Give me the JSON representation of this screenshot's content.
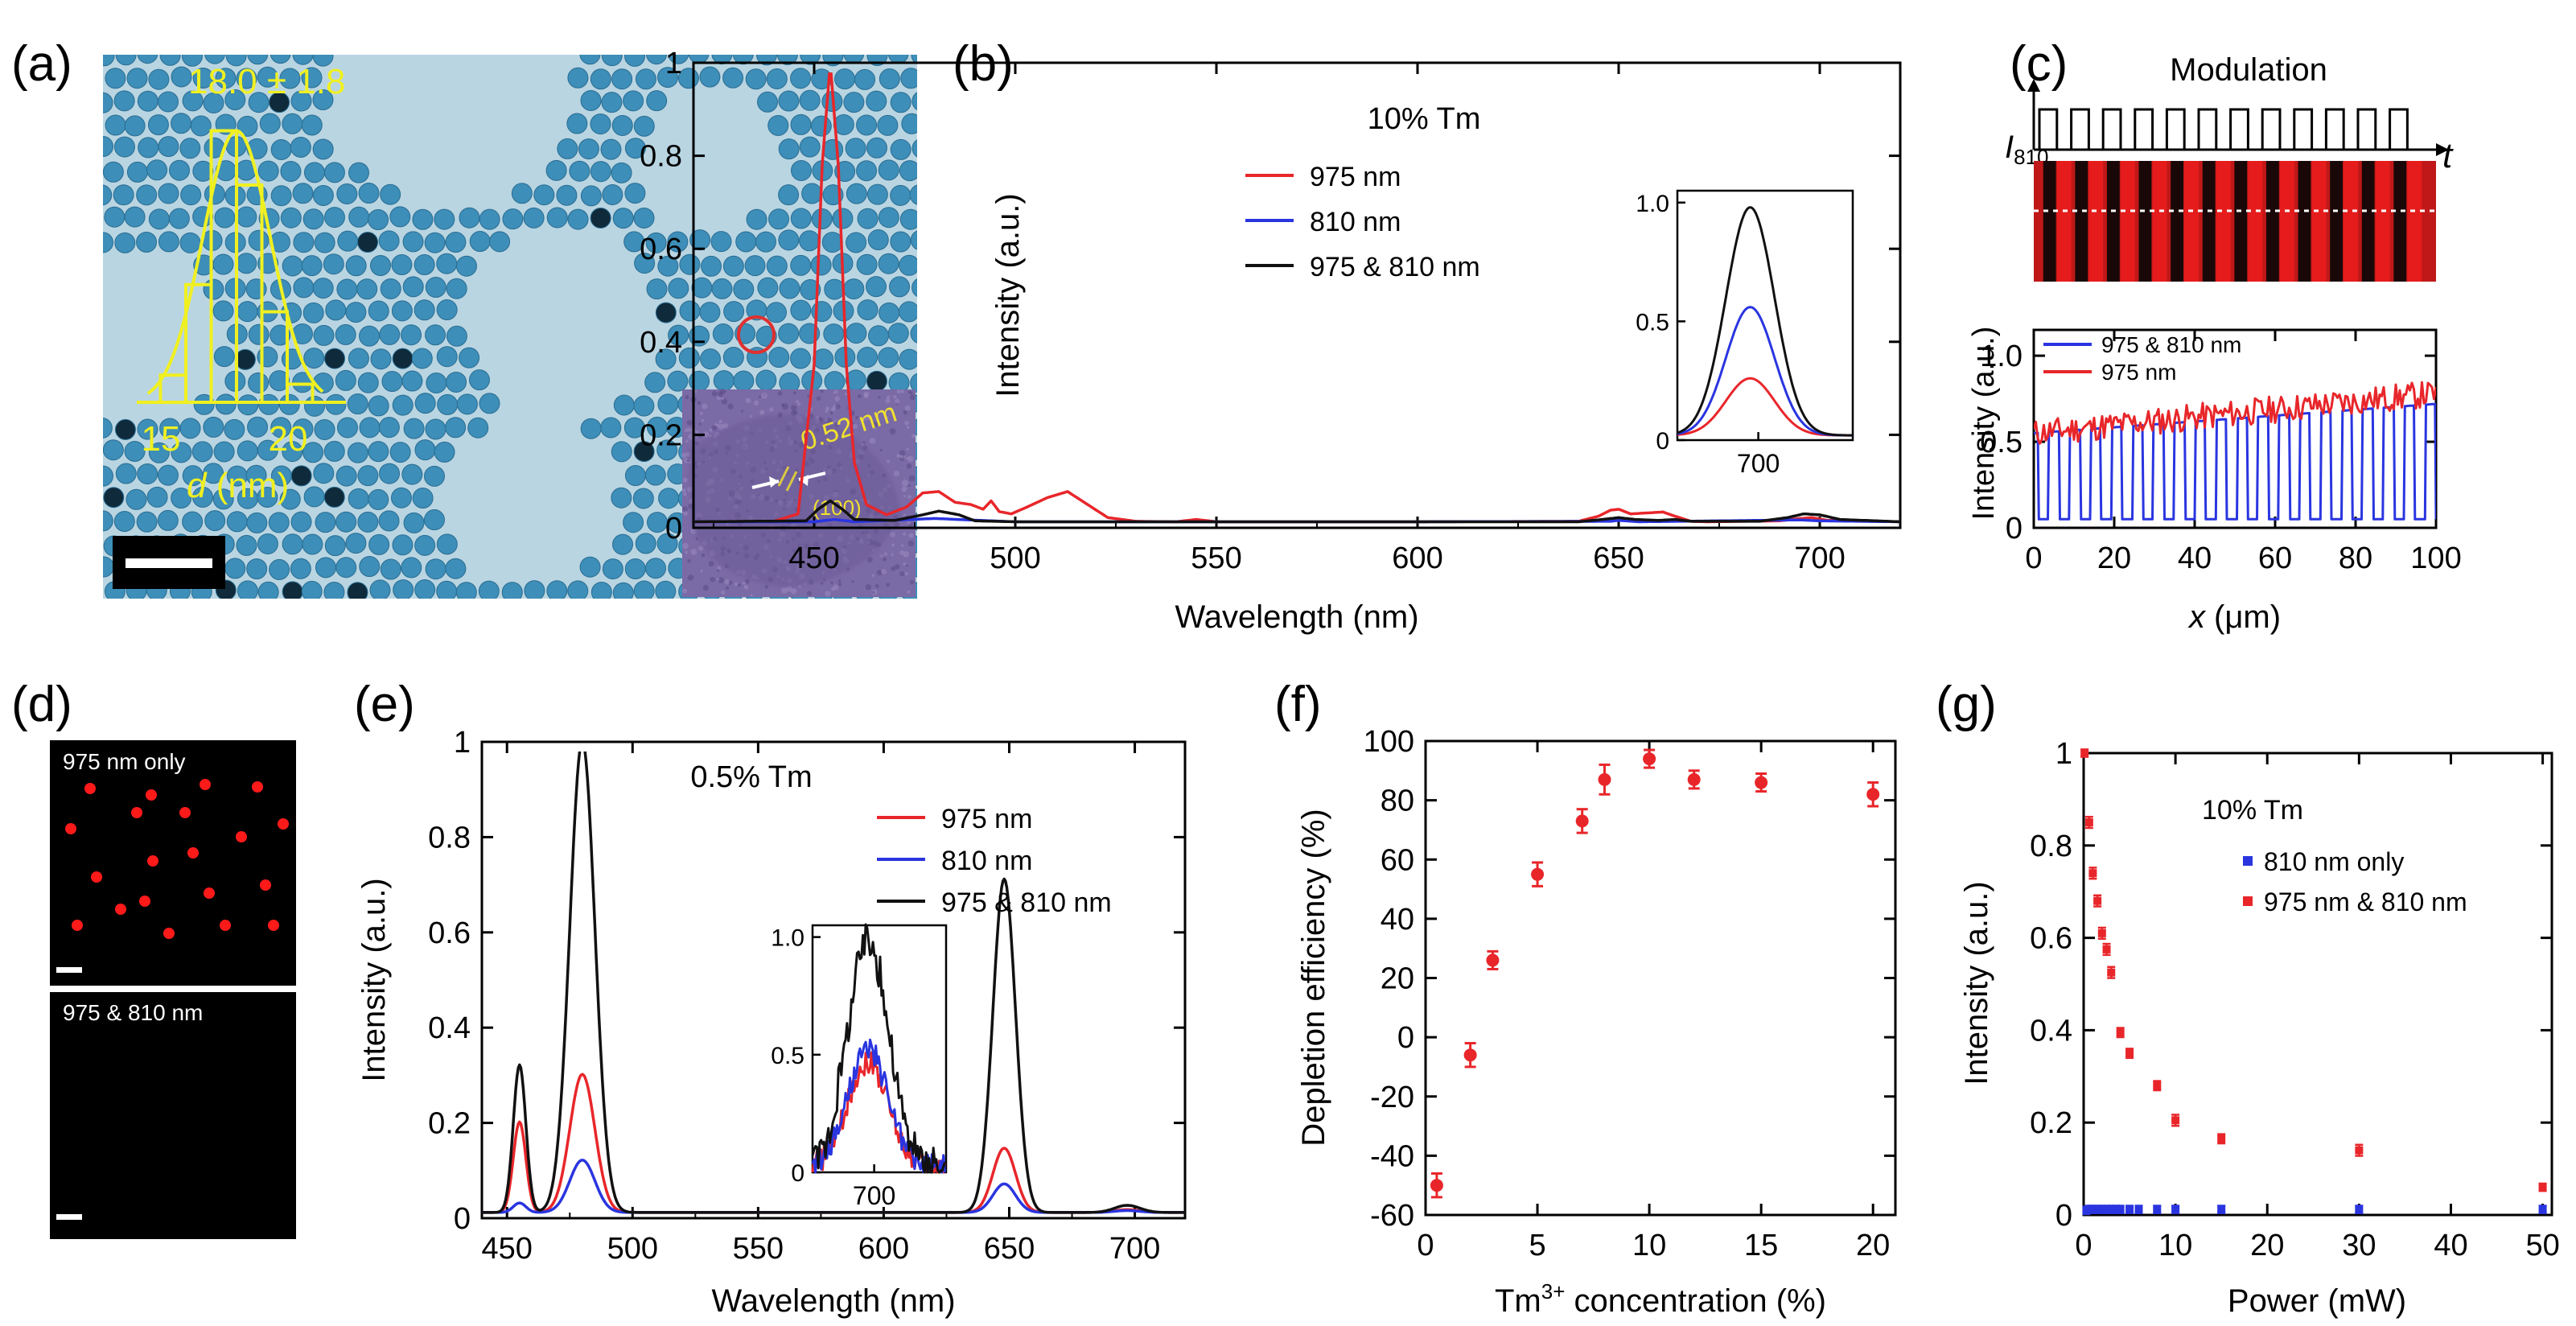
{
  "figure": {
    "panel_labels": [
      "(a)",
      "(b)",
      "(c)",
      "(d)",
      "(e)",
      "(f)",
      "(g)"
    ]
  },
  "panel_a": {
    "hist_label": "18.0 ± 1.8",
    "hist_xticks": [
      "15",
      "20"
    ],
    "hist_xlabel_var": "d",
    "hist_xlabel_unit": " (nm)",
    "hist_bins": [
      15.5,
      16.5,
      17.5,
      18.5,
      19.5,
      20.5
    ],
    "hist_counts": [
      3,
      13,
      30,
      24,
      10,
      2
    ],
    "inset_spacing": "0.52 nm",
    "inset_plane": "(100)",
    "colors": {
      "annotation": "#f0f020",
      "background": "#b9d5e2",
      "particle": "#3d8eb8",
      "circle": "#e03030"
    }
  },
  "chart_data": [
    {
      "panel": "b",
      "type": "line",
      "title": "10% Tm",
      "xlabel": "Wavelength (nm)",
      "ylabel": "Intensity (a.u.)",
      "xlim": [
        420,
        720
      ],
      "ylim": [
        0,
        1.0
      ],
      "xticks": [
        450,
        500,
        550,
        600,
        650,
        700
      ],
      "yticks": [
        0,
        0.2,
        0.4,
        0.6,
        0.8,
        1
      ],
      "ytick_labels": [
        "0",
        "0.2",
        "0.4",
        "0.6",
        "0.8",
        "1"
      ],
      "series": [
        {
          "name": "975 nm",
          "color": "#e8262a",
          "x": [
            420,
            440,
            446,
            450,
            452,
            454,
            456,
            458,
            460,
            463,
            468,
            473,
            477,
            481,
            485,
            489,
            492,
            494,
            496,
            499,
            503,
            508,
            513,
            518,
            523,
            530,
            540,
            545,
            550,
            600,
            640,
            645,
            648,
            650,
            653,
            657,
            661,
            664,
            668,
            672,
            690,
            695,
            698,
            702,
            720
          ],
          "values": [
            0.013,
            0.014,
            0.03,
            0.35,
            0.78,
            1.0,
            0.78,
            0.35,
            0.14,
            0.05,
            0.028,
            0.045,
            0.075,
            0.078,
            0.055,
            0.05,
            0.04,
            0.058,
            0.035,
            0.03,
            0.045,
            0.065,
            0.078,
            0.05,
            0.022,
            0.014,
            0.013,
            0.018,
            0.013,
            0.013,
            0.014,
            0.025,
            0.038,
            0.04,
            0.03,
            0.032,
            0.034,
            0.025,
            0.014,
            0.013,
            0.015,
            0.02,
            0.022,
            0.016,
            0.013
          ]
        },
        {
          "name": "810 nm",
          "color": "#2a35e0",
          "x": [
            420,
            450,
            455,
            460,
            480,
            500,
            550,
            600,
            648,
            650,
            655,
            695,
            700,
            720
          ],
          "values": [
            0.013,
            0.013,
            0.018,
            0.013,
            0.02,
            0.013,
            0.013,
            0.013,
            0.014,
            0.016,
            0.013,
            0.017,
            0.015,
            0.013
          ]
        },
        {
          "name": "975 & 810 nm",
          "color": "#111111",
          "x": [
            420,
            448,
            451,
            454,
            457,
            460,
            470,
            477,
            481,
            486,
            490,
            500,
            550,
            600,
            640,
            646,
            650,
            654,
            660,
            664,
            668,
            685,
            692,
            696,
            700,
            705,
            720
          ],
          "values": [
            0.013,
            0.015,
            0.04,
            0.058,
            0.04,
            0.018,
            0.016,
            0.028,
            0.036,
            0.028,
            0.015,
            0.013,
            0.013,
            0.013,
            0.013,
            0.018,
            0.022,
            0.018,
            0.016,
            0.018,
            0.014,
            0.014,
            0.022,
            0.03,
            0.028,
            0.018,
            0.013
          ]
        }
      ],
      "inset": {
        "xtick": "700",
        "yticks": [
          0,
          0.5,
          1.0
        ],
        "ytick_labels": [
          "0",
          "0.5",
          "1.0"
        ],
        "xlim": [
          670,
          735
        ],
        "ylim": [
          0,
          1.05
        ],
        "center": 697,
        "sigma": 9,
        "peaks": {
          "975 nm": 0.24,
          "810 nm": 0.54,
          "975 & 810 nm": 0.96
        }
      }
    },
    {
      "panel": "c",
      "type": "line",
      "title": "Modulation",
      "xlabel": "x (μm)",
      "ylabel": "Intensity (a.u.)",
      "xlim": [
        0,
        100
      ],
      "ylim": [
        0,
        1.15
      ],
      "xticks": [
        0,
        20,
        40,
        60,
        80,
        100
      ],
      "yticks": [
        0,
        0.5,
        1.0
      ],
      "ytick_labels": [
        "0",
        "0.5",
        "1.0"
      ],
      "modulation_label_var": "I",
      "modulation_label_sub": "810",
      "time_label": "t",
      "period_um": 5.2,
      "series": [
        {
          "name": "975 & 810 nm",
          "color": "#2a35e0",
          "type": "modulated",
          "low": 0.05,
          "high_start": 0.55,
          "high_end": 0.72
        },
        {
          "name": "975 nm",
          "color": "#e8262a",
          "type": "noisy",
          "start": 0.55,
          "end": 0.78,
          "noise": 0.08
        }
      ]
    },
    {
      "panel": "e",
      "type": "line",
      "title": "0.5% Tm",
      "xlabel": "Wavelength (nm)",
      "ylabel": "Intensity (a.u.)",
      "xlim": [
        440,
        720
      ],
      "ylim": [
        0,
        1.0
      ],
      "xticks": [
        450,
        500,
        550,
        600,
        650,
        700
      ],
      "yticks": [
        0,
        0.2,
        0.4,
        0.6,
        0.8,
        1
      ],
      "ytick_labels": [
        "0",
        "0.2",
        "0.4",
        "0.6",
        "0.8",
        "1"
      ],
      "peaks_centers": [
        455,
        480,
        648,
        697
      ],
      "peaks_widths": [
        2.5,
        5,
        4.5,
        5
      ],
      "series": [
        {
          "name": "975 nm",
          "color": "#e8262a",
          "peaks": [
            0.19,
            0.29,
            0.135,
            0.006
          ],
          "base": 0.012
        },
        {
          "name": "810 nm",
          "color": "#2a35e0",
          "peaks": [
            0.02,
            0.11,
            0.06,
            0.004
          ],
          "base": 0.012
        },
        {
          "name": "975 & 810 nm",
          "color": "#111111",
          "peaks": [
            0.31,
            0.99,
            0.7,
            0.015
          ],
          "base": 0.012
        }
      ],
      "inset": {
        "xtick": "700",
        "yticks": [
          0,
          0.5,
          1.0
        ],
        "ytick_labels": [
          "0",
          "0.5",
          "1.0"
        ],
        "xlim": [
          670,
          735
        ],
        "ylim": [
          0,
          1.05
        ],
        "center": 697,
        "sigma": 10,
        "peaks": {
          "975 nm": 0.45,
          "810 nm": 0.5,
          "975 & 810 nm": 0.97
        }
      }
    },
    {
      "panel": "f",
      "type": "scatter",
      "xlabel_prefix": "Tm",
      "xlabel_sup": "3+",
      "xlabel_suffix": " concentration (%)",
      "ylabel": "Depletion efficiency (%)",
      "xlim": [
        0,
        21
      ],
      "ylim": [
        -60,
        100
      ],
      "xticks": [
        0,
        5,
        10,
        15,
        20
      ],
      "yticks": [
        -60,
        -40,
        -20,
        0,
        20,
        40,
        60,
        80,
        100
      ],
      "color": "#e8262a",
      "x": [
        0.5,
        2,
        3,
        5,
        7,
        8,
        10,
        12,
        15,
        20
      ],
      "y": [
        -50,
        -6,
        26,
        55,
        73,
        87,
        94,
        87,
        86,
        82
      ],
      "err": [
        4,
        4,
        3,
        4,
        4,
        5,
        3,
        3,
        3,
        4
      ]
    },
    {
      "panel": "g",
      "type": "scatter",
      "title": "10% Tm",
      "xlabel": "Power (mW)",
      "ylabel": "Intensity (a.u.)",
      "xlim": [
        0,
        51
      ],
      "ylim": [
        0,
        1.0
      ],
      "xticks": [
        0,
        10,
        20,
        30,
        40,
        50
      ],
      "yticks": [
        0,
        0.2,
        0.4,
        0.6,
        0.8,
        1
      ],
      "ytick_labels": [
        "0",
        "0.2",
        "0.4",
        "0.6",
        "0.8",
        "1"
      ],
      "series": [
        {
          "name": "810 nm only",
          "color": "#2a35e0",
          "x": [
            0.3,
            0.6,
            1,
            1.5,
            2,
            2.5,
            3,
            3.5,
            4,
            5,
            6,
            8,
            10,
            15,
            30,
            50
          ],
          "y": [
            0.01,
            0.012,
            0.012,
            0.012,
            0.012,
            0.012,
            0.012,
            0.012,
            0.012,
            0.012,
            0.012,
            0.012,
            0.012,
            0.012,
            0.012,
            0.012
          ],
          "err": [
            0.008,
            0.008,
            0.008,
            0.008,
            0.008,
            0.008,
            0.008,
            0.008,
            0.008,
            0.008,
            0.008,
            0.008,
            0.008,
            0.008,
            0.008,
            0.008
          ]
        },
        {
          "name": "975 nm & 810 nm",
          "color": "#e8262a",
          "x": [
            0.1,
            0.6,
            1,
            1.5,
            2,
            2.5,
            3,
            4,
            5,
            8,
            10,
            15,
            30,
            50
          ],
          "y": [
            1.0,
            0.85,
            0.74,
            0.68,
            0.61,
            0.575,
            0.525,
            0.395,
            0.35,
            0.28,
            0.205,
            0.165,
            0.14,
            0.06
          ],
          "err": [
            0.008,
            0.012,
            0.012,
            0.012,
            0.012,
            0.012,
            0.012,
            0.01,
            0.01,
            0.01,
            0.012,
            0.01,
            0.012,
            0.008
          ]
        }
      ]
    }
  ],
  "panel_d": {
    "top_label": "975 nm only",
    "bottom_label": "975 & 810 nm",
    "dot_color": "#ff1a1a"
  }
}
